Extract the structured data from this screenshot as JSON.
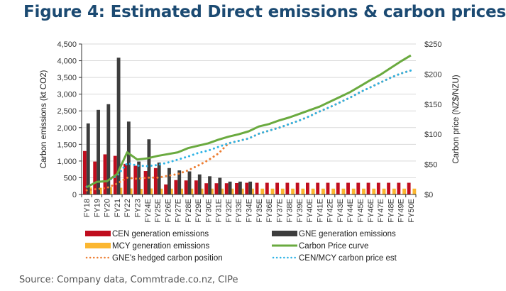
{
  "figure": {
    "title": "Figure 4: Estimated Direct emissions & carbon prices",
    "source": "Source: Company data, Commtrade.co.nz, CIPe"
  },
  "chart_data": {
    "type": "bar+line",
    "title": "Figure 4: Estimated Direct emissions & carbon prices",
    "categories": [
      "FY18",
      "FY19",
      "FY20",
      "FY21",
      "FY22",
      "FY23",
      "FY24E",
      "FY25E",
      "FY26E",
      "FY27E",
      "FY28E",
      "FY29E",
      "FY30E",
      "FY31E",
      "FY32E",
      "FY33E",
      "FY34E",
      "FY35E",
      "FY36E",
      "FY37E",
      "FY38E",
      "FY39E",
      "FY40E",
      "FY41E",
      "FY42E",
      "FY43E",
      "FY44E",
      "FY45E",
      "FY46E",
      "FY47E",
      "FY48E",
      "FY49E",
      "FY50E"
    ],
    "ylabel": "Carbon emissions (kt CO2)",
    "ylabel_right": "Carbon price (NZ$/NZU)",
    "ylim": [
      0,
      4500
    ],
    "ylim_right": [
      0,
      250
    ],
    "yticks": [
      "0",
      "500",
      "1,000",
      "1,500",
      "2,000",
      "2,500",
      "3,000",
      "3,500",
      "4,000",
      "4,500"
    ],
    "yticks_right": [
      "$0",
      "$50",
      "$100",
      "$150",
      "$200",
      "$250"
    ],
    "grid": true,
    "legend_position": "bottom",
    "bar_series": [
      {
        "name": "CEN generation emissions",
        "color": "#c00d1e",
        "axis": "left",
        "values": [
          1300,
          985,
          1200,
          1155,
          915,
          860,
          700,
          790,
          300,
          430,
          420,
          420,
          335,
          335,
          335,
          340,
          350,
          350,
          350,
          350,
          350,
          350,
          350,
          350,
          350,
          350,
          350,
          350,
          350,
          350,
          350,
          350,
          350
        ]
      },
      {
        "name": "GNE generation emissions",
        "color": "#3d3d3d",
        "axis": "left",
        "values": [
          2125,
          2530,
          2700,
          4090,
          2180,
          985,
          1650,
          955,
          790,
          720,
          690,
          600,
          545,
          500,
          385,
          385,
          385,
          0,
          0,
          0,
          0,
          0,
          0,
          0,
          0,
          0,
          0,
          0,
          0,
          0,
          0,
          0,
          0
        ]
      },
      {
        "name": "MCY generation emissions",
        "color": "#fbb731",
        "axis": "left",
        "values": [
          210,
          200,
          220,
          200,
          180,
          170,
          180,
          175,
          175,
          175,
          175,
          175,
          175,
          175,
          175,
          175,
          175,
          175,
          175,
          175,
          175,
          175,
          175,
          175,
          175,
          175,
          175,
          175,
          175,
          175,
          175,
          175,
          175
        ]
      }
    ],
    "line_series": [
      {
        "name": "Carbon Price curve",
        "color": "#6aaa3f",
        "style": "solid",
        "axis": "right",
        "values": [
          12,
          21,
          22,
          34,
          70,
          58,
          60,
          64,
          67,
          70,
          77,
          81,
          85,
          91,
          96,
          100,
          105,
          113,
          117,
          123,
          128,
          134,
          140,
          146,
          154,
          162,
          170,
          180,
          190,
          199,
          210,
          221,
          231
        ]
      },
      {
        "name": "GNE's hedged carbon position",
        "color": "#ed7d31",
        "style": "dotted",
        "axis": "right",
        "values": [
          7,
          9,
          11,
          18,
          28,
          26,
          28,
          28,
          31,
          34,
          40,
          48,
          57,
          68,
          85,
          89,
          93,
          101,
          106,
          111,
          117,
          123,
          130,
          138,
          145,
          153,
          161,
          170,
          178,
          186,
          194,
          201,
          206
        ]
      },
      {
        "name": "CEN/MCY carbon price est",
        "color": "#2eb3e5",
        "style": "dotted",
        "axis": "right",
        "values": [
          13,
          21,
          22,
          31,
          52,
          48,
          47,
          49,
          53,
          58,
          63,
          69,
          73,
          79,
          85,
          89,
          93,
          101,
          106,
          111,
          117,
          123,
          130,
          138,
          145,
          153,
          161,
          170,
          178,
          186,
          194,
          201,
          206
        ]
      }
    ],
    "legend": [
      {
        "label": "CEN generation emissions",
        "kind": "bar",
        "color": "#c00d1e"
      },
      {
        "label": "GNE generation emissions",
        "kind": "bar",
        "color": "#3d3d3d"
      },
      {
        "label": "MCY generation emissions",
        "kind": "bar",
        "color": "#fbb731"
      },
      {
        "label": "Carbon Price curve",
        "kind": "line",
        "color": "#6aaa3f"
      },
      {
        "label": "GNE's hedged carbon position",
        "kind": "dotted",
        "color": "#ed7d31"
      },
      {
        "label": "CEN/MCY carbon price est",
        "kind": "dotted",
        "color": "#2eb3e5"
      }
    ]
  }
}
